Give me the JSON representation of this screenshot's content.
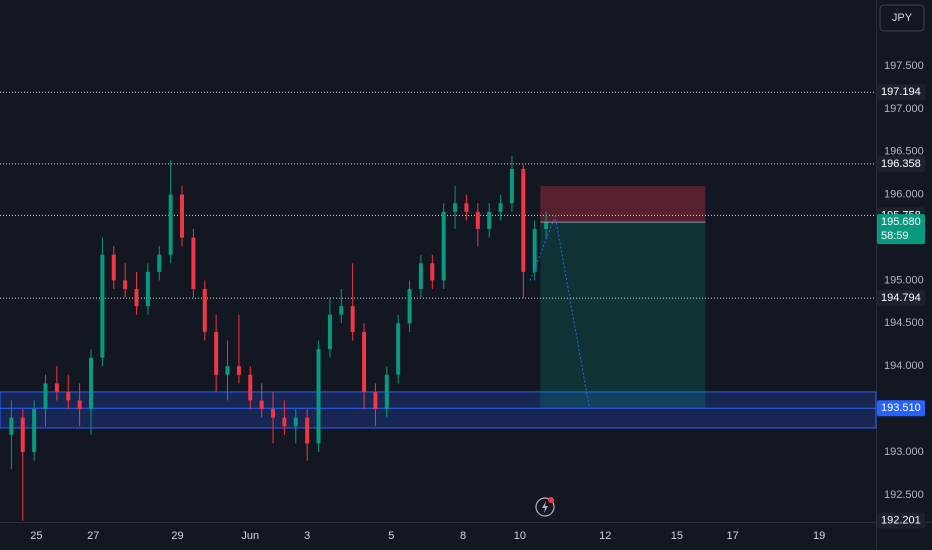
{
  "chart_data": {
    "type": "candlestick",
    "currency": "JPY",
    "open": [
      193.2,
      193.4,
      193.0,
      193.5,
      193.8,
      193.7,
      193.6,
      193.5,
      194.1,
      195.3,
      195.0,
      194.9,
      194.7,
      195.1,
      195.3,
      196.0,
      195.5,
      194.9,
      194.4,
      193.9,
      194.0,
      193.9,
      193.6,
      193.5,
      193.4,
      193.3,
      193.4,
      193.1,
      194.2,
      194.6,
      194.7,
      194.4,
      193.7,
      193.5,
      193.9,
      194.5,
      194.9,
      195.2,
      195.0,
      195.8,
      195.9,
      195.8,
      195.6,
      195.8,
      195.9,
      196.3,
      195.1,
      195.6
    ],
    "high": [
      193.6,
      193.5,
      193.6,
      193.9,
      194.0,
      193.9,
      193.8,
      194.2,
      195.5,
      195.4,
      195.2,
      195.1,
      195.2,
      195.4,
      196.4,
      196.1,
      195.6,
      195.0,
      194.6,
      194.3,
      194.6,
      194.0,
      193.8,
      193.7,
      193.6,
      193.5,
      193.5,
      194.3,
      194.8,
      194.9,
      195.2,
      194.5,
      193.8,
      194.0,
      194.6,
      195.0,
      195.3,
      195.3,
      195.9,
      196.1,
      196.0,
      195.9,
      195.9,
      196.0,
      196.45,
      196.35,
      195.7,
      195.8
    ],
    "low": [
      192.8,
      192.2,
      192.9,
      193.3,
      193.6,
      193.5,
      193.3,
      193.2,
      194.0,
      194.9,
      194.8,
      194.6,
      194.6,
      195.0,
      195.2,
      195.4,
      194.8,
      194.3,
      193.7,
      193.6,
      193.8,
      193.5,
      193.4,
      193.1,
      193.2,
      193.1,
      192.9,
      193.0,
      194.1,
      194.5,
      194.3,
      193.5,
      193.3,
      193.4,
      193.8,
      194.4,
      194.8,
      194.9,
      194.9,
      195.6,
      195.7,
      195.4,
      195.5,
      195.7,
      195.8,
      194.8,
      195.0,
      195.5
    ],
    "close": [
      193.4,
      193.0,
      193.5,
      193.8,
      193.7,
      193.6,
      193.5,
      194.1,
      195.3,
      195.0,
      194.9,
      194.7,
      195.1,
      195.3,
      196.0,
      195.5,
      194.9,
      194.4,
      193.9,
      194.0,
      193.9,
      193.6,
      193.5,
      193.4,
      193.3,
      193.4,
      193.1,
      194.2,
      194.6,
      194.7,
      194.4,
      193.7,
      193.5,
      193.9,
      194.5,
      194.9,
      195.2,
      195.0,
      195.8,
      195.9,
      195.8,
      195.6,
      195.8,
      195.9,
      196.3,
      195.1,
      195.6,
      195.68
    ],
    "up_color": "#089981",
    "down_color": "#f23645",
    "xlim": [
      -1,
      76
    ],
    "ylim": [
      192.184,
      198.269
    ],
    "xticks": [
      {
        "value": 2.2,
        "label": "25"
      },
      {
        "value": 7.2,
        "label": "27"
      },
      {
        "value": 14.6,
        "label": "29"
      },
      {
        "value": 21,
        "label": "Jun"
      },
      {
        "value": 26,
        "label": "3"
      },
      {
        "value": 33.4,
        "label": "5"
      },
      {
        "value": 39.7,
        "label": "8"
      },
      {
        "value": 44.7,
        "label": "10"
      },
      {
        "value": 52.2,
        "label": "12"
      },
      {
        "value": 58.5,
        "label": "15"
      },
      {
        "value": 63.4,
        "label": "17"
      },
      {
        "value": 71,
        "label": "19"
      }
    ],
    "yticks": [
      {
        "value": 197.5,
        "label": "197.500"
      },
      {
        "value": 197,
        "label": "197.000"
      },
      {
        "value": 196.5,
        "label": "196.500"
      },
      {
        "value": 196,
        "label": "196.000"
      },
      {
        "value": 195,
        "label": "195.000"
      },
      {
        "value": 194.5,
        "label": "194.500"
      },
      {
        "value": 194,
        "label": "194.000"
      },
      {
        "value": 193,
        "label": "193.000"
      },
      {
        "value": 192.5,
        "label": "192.500"
      }
    ],
    "price_lines": [
      {
        "value": 197.194,
        "label": "197.194"
      },
      {
        "value": 196.358,
        "label": "196.358"
      },
      {
        "value": 195.758,
        "label": "195.758"
      },
      {
        "value": 194.794,
        "label": "194.794"
      }
    ],
    "last_price": {
      "value": 195.68,
      "label": "195.680",
      "countdown": "58:59",
      "color": "#089981"
    },
    "zone": {
      "low": 193.28,
      "high": 193.7,
      "level": {
        "value": 193.51,
        "label": "193.510"
      },
      "color": "#2962ff"
    },
    "low_price": {
      "value": 192.201,
      "label": "192.201"
    },
    "position": {
      "entry": 195.68,
      "stop": 196.1,
      "target": 193.51,
      "start": 46.5,
      "end": 61
    }
  }
}
